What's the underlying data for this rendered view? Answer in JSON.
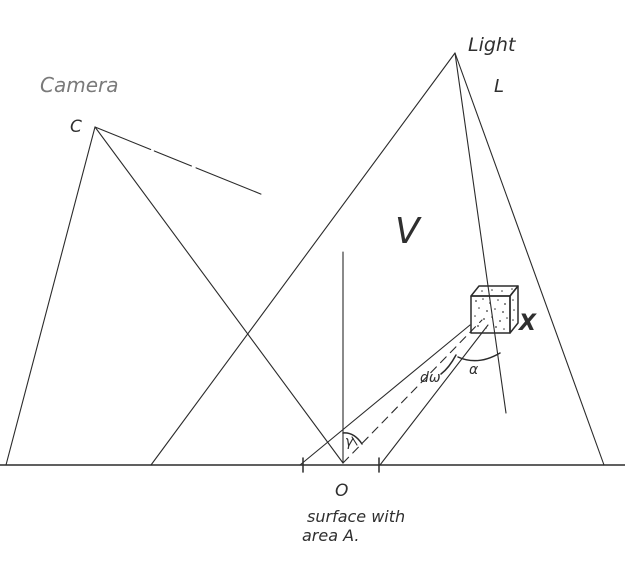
{
  "labels": {
    "camera_word": "Camera",
    "camera_point": "C",
    "light_word": "Light",
    "light_point": "L",
    "volume": "V",
    "voxel": "X",
    "solid_angle": "dω",
    "alpha": "α",
    "gamma": "γ",
    "origin": "O",
    "surface_line1": "surface with",
    "surface_line2": "area A."
  }
}
